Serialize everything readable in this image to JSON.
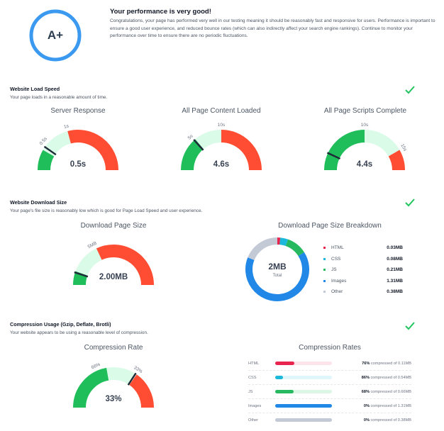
{
  "summary": {
    "grade": "A+",
    "title": "Your performance is very good!",
    "body": "Congratulations, your page has performed very well in our testing meaning it should be reasonably fast and responsive for users. Performance is important to ensure a good user experience, and reduced bounce rates (which can also indirectly affect your search engine rankings). Continue to monitor your performance over time to ensure there are no periodic fluctuations.",
    "ring_color": "#3b99f0"
  },
  "load_speed": {
    "title": "Website Load Speed",
    "desc": "Your page loads in a reasonable amount of time.",
    "status_icon": "check-icon",
    "gauges": [
      {
        "title": "Server Response",
        "value": "0.5s",
        "ticks": [
          "0.5s",
          "1s"
        ]
      },
      {
        "title": "All Page Content Loaded",
        "value": "4.6s",
        "ticks": [
          "5s",
          "10s"
        ]
      },
      {
        "title": "All Page Scripts Complete",
        "value": "4.4s",
        "ticks": [
          "10s",
          "15s"
        ]
      }
    ]
  },
  "download_size": {
    "title": "Website Download Size",
    "desc": "Your page's file size is reasonably low which is good for Page Load Speed and user experience.",
    "status_icon": "check-icon",
    "gauge": {
      "title": "Download Page Size",
      "value": "2.00MB",
      "ticks": [
        "5MB"
      ]
    },
    "breakdown": {
      "title": "Download Page Size Breakdown",
      "total_value": "2MB",
      "total_label": "Total",
      "items": [
        {
          "label": "HTML",
          "value": "0.03MB",
          "mb": 0.03,
          "color": "#e8254e"
        },
        {
          "label": "CSS",
          "value": "0.08MB",
          "mb": 0.08,
          "color": "#1bb8d9"
        },
        {
          "label": "JS",
          "value": "0.21MB",
          "mb": 0.21,
          "color": "#26b95f"
        },
        {
          "label": "Images",
          "value": "1.31MB",
          "mb": 1.31,
          "color": "#2188e8"
        },
        {
          "label": "Other",
          "value": "0.38MB",
          "mb": 0.38,
          "color": "#c3cad6"
        }
      ]
    }
  },
  "compression": {
    "title": "Compression Usage (Gzip, Deflate, Brotli)",
    "desc": "Your website appears to be using a reasonable level of compression.",
    "status_icon": "check-icon",
    "gauge": {
      "title": "Compression Rate",
      "value": "33%",
      "ticks": [
        "66%",
        "33%"
      ]
    },
    "rates": {
      "title": "Compression Rates",
      "items": [
        {
          "label": "HTML",
          "percent": "76%",
          "text": " compressed of 0.11MB",
          "fill": 0.34,
          "color": "#e8254e",
          "track": "#fde4ea"
        },
        {
          "label": "CSS",
          "percent": "86%",
          "text": " compressed of 0.54MB",
          "fill": 0.14,
          "color": "#1bb8d9",
          "track": "#dff6fb"
        },
        {
          "label": "JS",
          "percent": "68%",
          "text": " compressed of 0.66MB",
          "fill": 0.32,
          "color": "#26b95f",
          "track": "#dcf7e6"
        },
        {
          "label": "Images",
          "percent": "0%",
          "text": " compressed of 1.31MB",
          "fill": 1.0,
          "color": "#2188e8",
          "track": "#dbeafe"
        },
        {
          "label": "Other",
          "percent": "0%",
          "text": " compressed of 0.38MB",
          "fill": 1.0,
          "color": "#c3cad6",
          "track": "#eef0f4"
        }
      ]
    }
  },
  "colors": {
    "green": "#1fbe5a",
    "light_green": "#d9fbe8",
    "red": "#ff4d33",
    "needle": "#1f2937"
  }
}
